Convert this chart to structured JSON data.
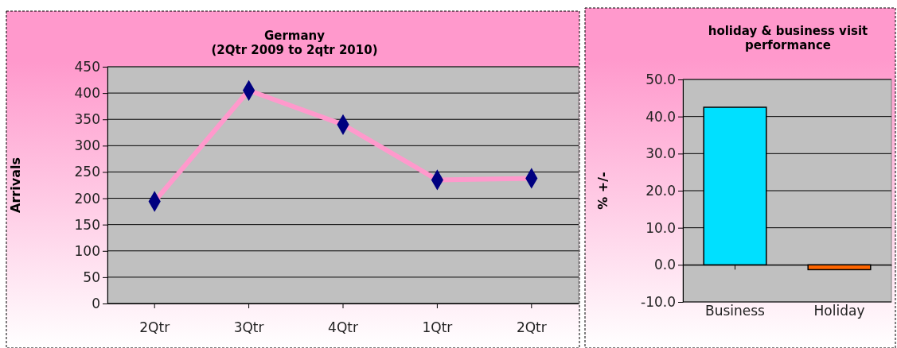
{
  "chart_data": [
    {
      "type": "line",
      "title": "Germany\n(2Qtr 2009 to 2qtr 2010)",
      "ylabel": "Arrivals",
      "categories": [
        "2Qtr",
        "3Qtr",
        "4Qtr",
        "1Qtr",
        "2Qtr"
      ],
      "series": [
        {
          "color": "#ff99cc",
          "values": [
            194,
            405,
            340,
            235,
            238
          ]
        }
      ],
      "ylim": [
        0,
        450
      ],
      "yticks": [
        0,
        50,
        100,
        150,
        200,
        250,
        300,
        350,
        400,
        450
      ],
      "grid": "y",
      "marker": "diamond"
    },
    {
      "type": "bar",
      "title": "holiday & business visit\nperformance",
      "ylabel": "% +/-",
      "categories": [
        "Business",
        "Holiday"
      ],
      "values": [
        42.5,
        -1.3
      ],
      "colors": [
        "#00e0ff",
        "#ff6600"
      ],
      "ylim": [
        -10,
        50
      ],
      "yticks": [
        {
          "value": -10,
          "label": "-10.0"
        },
        {
          "value": 0,
          "label": "0.0"
        },
        {
          "value": 10,
          "label": "10.0"
        },
        {
          "value": 20,
          "label": "20.0"
        },
        {
          "value": 30,
          "label": "30.0"
        },
        {
          "value": 40,
          "label": "40.0"
        },
        {
          "value": 50,
          "label": "50.0"
        }
      ],
      "grid": "y"
    }
  ]
}
